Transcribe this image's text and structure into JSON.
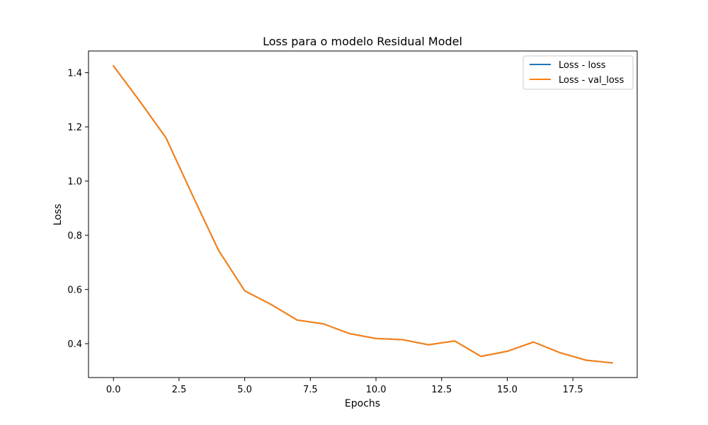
{
  "chart_data": {
    "type": "line",
    "title": "Loss para o modelo Residual Model",
    "xlabel": "Epochs",
    "ylabel": "Loss",
    "xlim": [
      -0.95,
      19.95
    ],
    "ylim": [
      0.275,
      1.48
    ],
    "xticks": [
      0.0,
      2.5,
      5.0,
      7.5,
      10.0,
      12.5,
      15.0,
      17.5
    ],
    "xtick_labels": [
      "0.0",
      "2.5",
      "5.0",
      "7.5",
      "10.0",
      "12.5",
      "15.0",
      "17.5"
    ],
    "yticks": [
      0.4,
      0.6,
      0.8,
      1.0,
      1.2,
      1.4
    ],
    "ytick_labels": [
      "0.4",
      "0.6",
      "0.8",
      "1.0",
      "1.2",
      "1.4"
    ],
    "grid": false,
    "legend_position": "top-right",
    "x": [
      0,
      1,
      2,
      3,
      4,
      5,
      6,
      7,
      8,
      9,
      10,
      11,
      12,
      13,
      14,
      15,
      16,
      17,
      18,
      19
    ],
    "series": [
      {
        "name": "Loss - loss",
        "color": "#1f77b4",
        "values": [
          1.425,
          1.295,
          1.16,
          0.95,
          0.745,
          0.595,
          0.545,
          0.487,
          0.473,
          0.437,
          0.419,
          0.415,
          0.396,
          0.41,
          0.353,
          0.372,
          0.406,
          0.367,
          0.339,
          0.329
        ]
      },
      {
        "name": "Loss - val_loss",
        "color": "#ff7f0e",
        "values": [
          1.425,
          1.295,
          1.16,
          0.95,
          0.745,
          0.595,
          0.545,
          0.487,
          0.473,
          0.437,
          0.419,
          0.415,
          0.396,
          0.41,
          0.353,
          0.372,
          0.406,
          0.367,
          0.339,
          0.329
        ]
      }
    ]
  }
}
